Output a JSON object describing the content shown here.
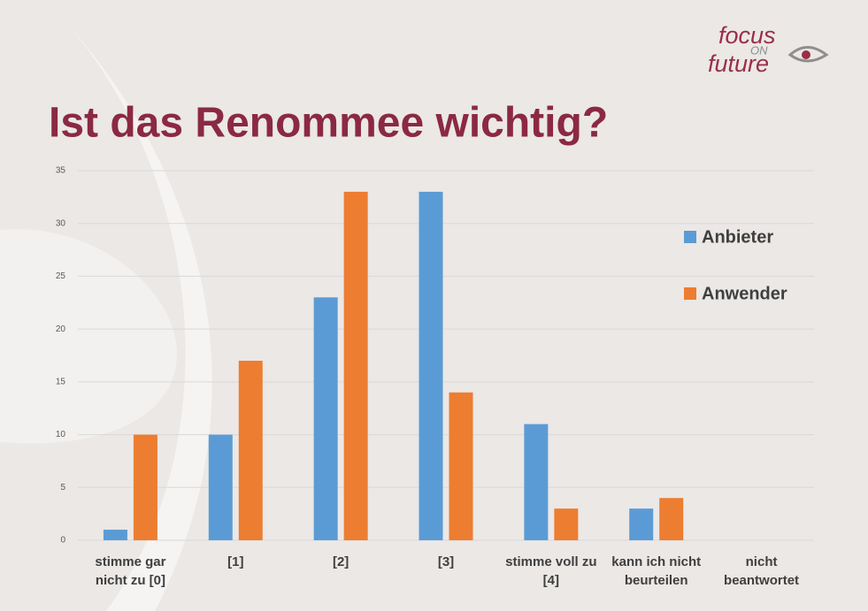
{
  "logo": {
    "line1": "focus",
    "line2": "ON",
    "line3": "future"
  },
  "chart_data": {
    "type": "bar",
    "title": "Ist das Renommee wichtig?",
    "categories": [
      "stimme gar nicht zu [0]",
      "[1]",
      "[2]",
      "[3]",
      "stimme voll zu [4]",
      "kann ich nicht beurteilen",
      "nicht beantwortet"
    ],
    "series": [
      {
        "name": "Anbieter",
        "color": "#5b9bd5",
        "values": [
          1,
          10,
          23,
          33,
          11,
          3,
          0
        ]
      },
      {
        "name": "Anwender",
        "color": "#ed7d31",
        "values": [
          10,
          17,
          33,
          14,
          3,
          4,
          0
        ]
      }
    ],
    "ylim": [
      0,
      35
    ],
    "yticks": [
      0,
      5,
      10,
      15,
      20,
      25,
      30,
      35
    ],
    "grid": true,
    "legend": "right"
  }
}
